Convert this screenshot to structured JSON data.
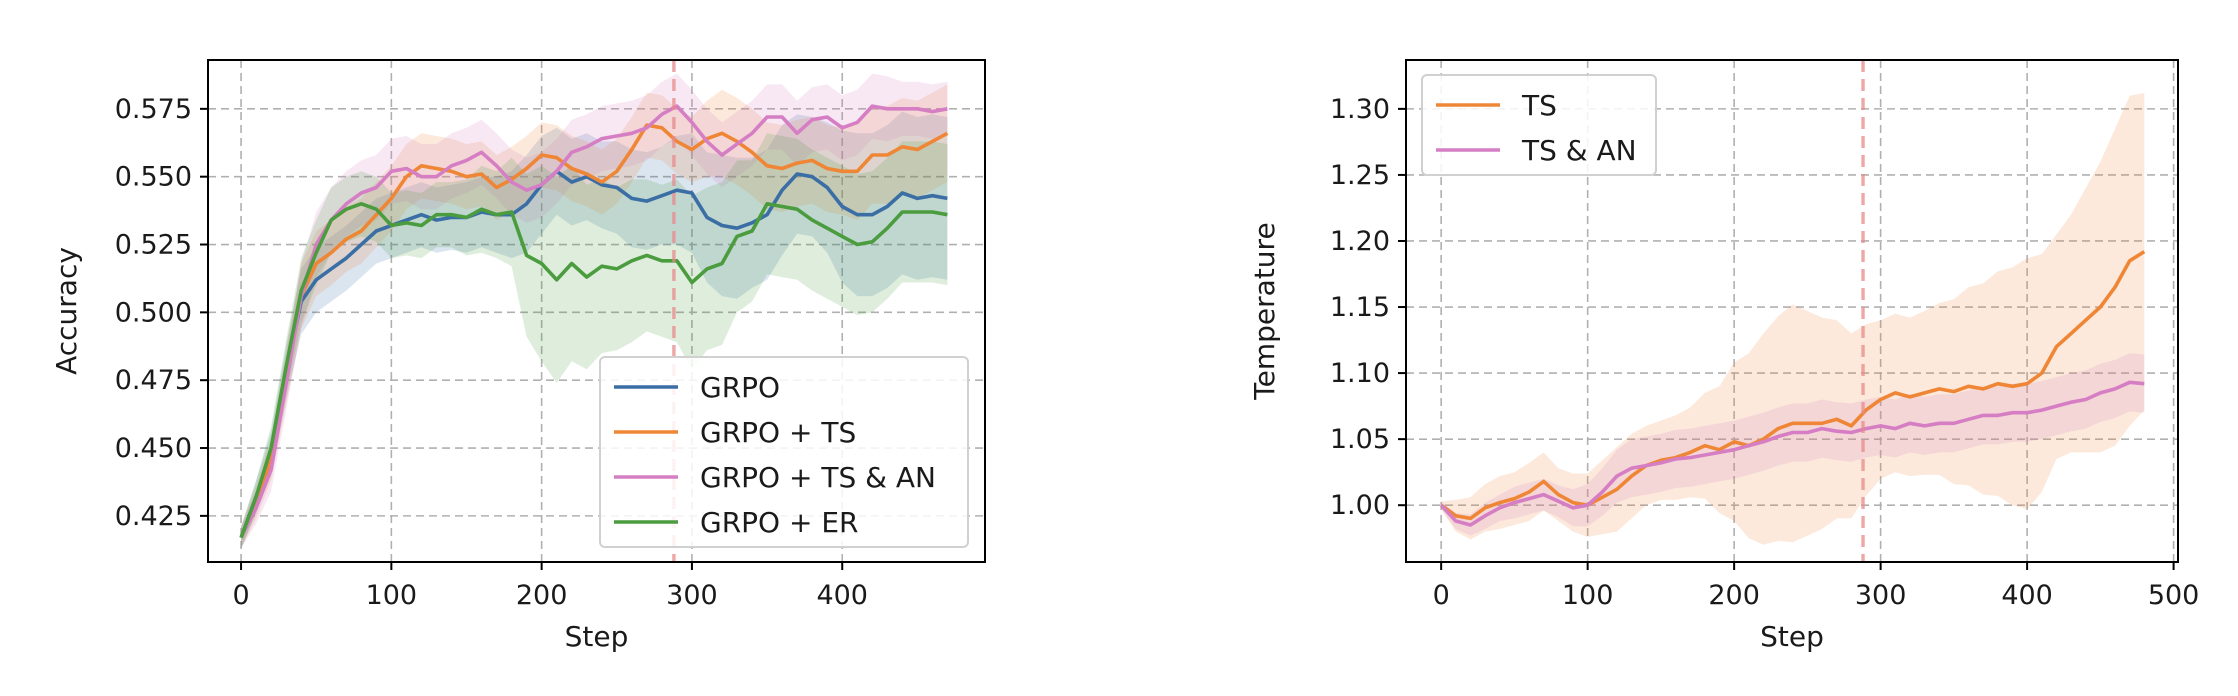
{
  "chart_data": [
    {
      "type": "line",
      "xlabel": "Step",
      "ylabel": "Accuracy",
      "xlim": [
        -22,
        495
      ],
      "ylim": [
        0.408,
        0.593
      ],
      "xticks": [
        0,
        100,
        200,
        300,
        400
      ],
      "yticks": [
        0.425,
        0.45,
        0.475,
        0.5,
        0.525,
        0.55,
        0.575
      ],
      "ytick_labels": [
        "0.425",
        "0.450",
        "0.475",
        "0.500",
        "0.525",
        "0.550",
        "0.575"
      ],
      "grid": true,
      "vline": 288,
      "legend_position": "lower-right",
      "series": [
        {
          "name": "GRPO",
          "color": "#3a6ea5",
          "x": [
            0,
            10,
            20,
            30,
            40,
            50,
            60,
            70,
            80,
            90,
            100,
            110,
            120,
            130,
            140,
            150,
            160,
            170,
            180,
            190,
            200,
            210,
            220,
            230,
            240,
            250,
            260,
            270,
            280,
            290,
            300,
            310,
            320,
            330,
            340,
            350,
            360,
            370,
            380,
            390,
            400,
            410,
            420,
            430,
            440,
            450,
            460,
            470
          ],
          "y": [
            0.417,
            0.432,
            0.448,
            0.478,
            0.504,
            0.512,
            0.516,
            0.52,
            0.525,
            0.53,
            0.532,
            0.534,
            0.536,
            0.534,
            0.535,
            0.535,
            0.537,
            0.536,
            0.536,
            0.54,
            0.547,
            0.552,
            0.548,
            0.55,
            0.547,
            0.546,
            0.542,
            0.541,
            0.543,
            0.545,
            0.544,
            0.535,
            0.532,
            0.531,
            0.533,
            0.536,
            0.545,
            0.551,
            0.55,
            0.546,
            0.539,
            0.536,
            0.536,
            0.539,
            0.544,
            0.542,
            0.543,
            0.542
          ],
          "band": [
            0.004,
            0.006,
            0.008,
            0.01,
            0.012,
            0.012,
            0.012,
            0.012,
            0.012,
            0.012,
            0.012,
            0.012,
            0.012,
            0.012,
            0.012,
            0.013,
            0.013,
            0.014,
            0.016,
            0.018,
            0.018,
            0.016,
            0.016,
            0.016,
            0.016,
            0.017,
            0.018,
            0.018,
            0.018,
            0.02,
            0.022,
            0.024,
            0.026,
            0.026,
            0.024,
            0.024,
            0.024,
            0.022,
            0.022,
            0.024,
            0.028,
            0.03,
            0.03,
            0.03,
            0.03,
            0.03,
            0.03,
            0.03
          ]
        },
        {
          "name": "GRPO + TS",
          "color": "#ef8636",
          "x": [
            0,
            10,
            20,
            30,
            40,
            50,
            60,
            70,
            80,
            90,
            100,
            110,
            120,
            130,
            140,
            150,
            160,
            170,
            180,
            190,
            200,
            210,
            220,
            230,
            240,
            250,
            260,
            270,
            280,
            290,
            300,
            310,
            320,
            330,
            340,
            350,
            360,
            370,
            380,
            390,
            400,
            410,
            420,
            430,
            440,
            450,
            460,
            470
          ],
          "y": [
            0.417,
            0.43,
            0.446,
            0.476,
            0.506,
            0.518,
            0.522,
            0.527,
            0.53,
            0.536,
            0.542,
            0.55,
            0.554,
            0.553,
            0.552,
            0.55,
            0.551,
            0.546,
            0.549,
            0.553,
            0.558,
            0.557,
            0.553,
            0.551,
            0.548,
            0.552,
            0.56,
            0.569,
            0.568,
            0.563,
            0.56,
            0.564,
            0.566,
            0.563,
            0.559,
            0.554,
            0.553,
            0.555,
            0.556,
            0.553,
            0.552,
            0.552,
            0.558,
            0.558,
            0.561,
            0.56,
            0.563,
            0.566
          ],
          "band": [
            0.004,
            0.006,
            0.008,
            0.01,
            0.012,
            0.012,
            0.012,
            0.012,
            0.012,
            0.012,
            0.012,
            0.012,
            0.012,
            0.012,
            0.012,
            0.012,
            0.012,
            0.012,
            0.012,
            0.012,
            0.012,
            0.012,
            0.012,
            0.012,
            0.012,
            0.012,
            0.012,
            0.012,
            0.012,
            0.012,
            0.012,
            0.014,
            0.016,
            0.016,
            0.016,
            0.016,
            0.016,
            0.016,
            0.016,
            0.016,
            0.016,
            0.018,
            0.018,
            0.018,
            0.018,
            0.018,
            0.018,
            0.018
          ]
        },
        {
          "name": "GRPO + TS & AN",
          "color": "#d57ec4",
          "x": [
            0,
            10,
            20,
            30,
            40,
            50,
            60,
            70,
            80,
            90,
            100,
            110,
            120,
            130,
            140,
            150,
            160,
            170,
            180,
            190,
            200,
            210,
            220,
            230,
            240,
            250,
            260,
            270,
            280,
            290,
            300,
            310,
            320,
            330,
            340,
            350,
            360,
            370,
            380,
            390,
            400,
            410,
            420,
            430,
            440,
            450,
            460,
            470
          ],
          "y": [
            0.417,
            0.428,
            0.442,
            0.474,
            0.506,
            0.525,
            0.534,
            0.54,
            0.544,
            0.546,
            0.552,
            0.553,
            0.55,
            0.55,
            0.554,
            0.556,
            0.559,
            0.554,
            0.548,
            0.545,
            0.547,
            0.552,
            0.559,
            0.561,
            0.564,
            0.565,
            0.566,
            0.568,
            0.573,
            0.576,
            0.57,
            0.563,
            0.558,
            0.562,
            0.566,
            0.572,
            0.572,
            0.566,
            0.571,
            0.572,
            0.568,
            0.57,
            0.576,
            0.575,
            0.575,
            0.575,
            0.574,
            0.575
          ],
          "band": [
            0.004,
            0.006,
            0.008,
            0.01,
            0.012,
            0.012,
            0.012,
            0.012,
            0.012,
            0.012,
            0.012,
            0.012,
            0.012,
            0.012,
            0.012,
            0.012,
            0.012,
            0.012,
            0.012,
            0.012,
            0.012,
            0.012,
            0.012,
            0.012,
            0.012,
            0.012,
            0.012,
            0.012,
            0.012,
            0.012,
            0.012,
            0.012,
            0.012,
            0.012,
            0.012,
            0.012,
            0.012,
            0.012,
            0.012,
            0.012,
            0.012,
            0.012,
            0.012,
            0.012,
            0.01,
            0.01,
            0.01,
            0.01
          ]
        },
        {
          "name": "GRPO + ER",
          "color": "#4a9c3e",
          "x": [
            0,
            10,
            20,
            30,
            40,
            50,
            60,
            70,
            80,
            90,
            100,
            110,
            120,
            130,
            140,
            150,
            160,
            170,
            180,
            190,
            200,
            210,
            220,
            230,
            240,
            250,
            260,
            270,
            280,
            290,
            300,
            310,
            320,
            330,
            340,
            350,
            360,
            370,
            380,
            390,
            400,
            410,
            420,
            430,
            440,
            450,
            460,
            470
          ],
          "y": [
            0.417,
            0.432,
            0.45,
            0.48,
            0.508,
            0.522,
            0.534,
            0.538,
            0.54,
            0.538,
            0.532,
            0.533,
            0.532,
            0.536,
            0.536,
            0.535,
            0.538,
            0.536,
            0.537,
            0.521,
            0.518,
            0.512,
            0.518,
            0.513,
            0.517,
            0.516,
            0.519,
            0.521,
            0.519,
            0.519,
            0.511,
            0.516,
            0.518,
            0.528,
            0.53,
            0.54,
            0.539,
            0.538,
            0.534,
            0.531,
            0.528,
            0.525,
            0.526,
            0.531,
            0.537,
            0.537,
            0.537,
            0.536
          ],
          "band": [
            0.004,
            0.006,
            0.008,
            0.01,
            0.012,
            0.012,
            0.012,
            0.012,
            0.012,
            0.012,
            0.012,
            0.012,
            0.012,
            0.012,
            0.012,
            0.014,
            0.016,
            0.016,
            0.02,
            0.03,
            0.036,
            0.038,
            0.036,
            0.034,
            0.032,
            0.03,
            0.03,
            0.028,
            0.028,
            0.03,
            0.032,
            0.03,
            0.03,
            0.028,
            0.026,
            0.026,
            0.026,
            0.026,
            0.026,
            0.026,
            0.026,
            0.026,
            0.026,
            0.026,
            0.026,
            0.026,
            0.026,
            0.026
          ]
        }
      ]
    },
    {
      "type": "line",
      "xlabel": "Step",
      "ylabel": "Temperature",
      "xlim": [
        -24,
        503
      ],
      "ylim": [
        0.957,
        1.337
      ],
      "xticks": [
        0,
        100,
        200,
        300,
        400,
        500
      ],
      "yticks": [
        1.0,
        1.05,
        1.1,
        1.15,
        1.2,
        1.25,
        1.3
      ],
      "ytick_labels": [
        "1.00",
        "1.05",
        "1.10",
        "1.15",
        "1.20",
        "1.25",
        "1.30"
      ],
      "grid": true,
      "vline": 288,
      "legend_position": "top-left",
      "series": [
        {
          "name": "TS",
          "color": "#ef8636",
          "x": [
            0,
            10,
            20,
            30,
            40,
            50,
            60,
            70,
            80,
            90,
            100,
            110,
            120,
            130,
            140,
            150,
            160,
            170,
            180,
            190,
            200,
            210,
            220,
            230,
            240,
            250,
            260,
            270,
            280,
            290,
            300,
            310,
            320,
            330,
            340,
            350,
            360,
            370,
            380,
            390,
            400,
            410,
            420,
            430,
            440,
            450,
            460,
            470,
            480
          ],
          "y": [
            1.0,
            0.992,
            0.99,
            0.998,
            1.002,
            1.005,
            1.01,
            1.018,
            1.008,
            1.002,
            1.0,
            1.006,
            1.012,
            1.022,
            1.03,
            1.034,
            1.036,
            1.04,
            1.045,
            1.042,
            1.048,
            1.045,
            1.05,
            1.058,
            1.062,
            1.062,
            1.062,
            1.065,
            1.06,
            1.072,
            1.08,
            1.085,
            1.082,
            1.085,
            1.088,
            1.086,
            1.09,
            1.088,
            1.092,
            1.09,
            1.092,
            1.1,
            1.12,
            1.13,
            1.14,
            1.15,
            1.165,
            1.185,
            1.192
          ],
          "band": [
            0.003,
            0.012,
            0.016,
            0.018,
            0.02,
            0.02,
            0.022,
            0.022,
            0.02,
            0.022,
            0.024,
            0.028,
            0.032,
            0.032,
            0.03,
            0.03,
            0.032,
            0.034,
            0.04,
            0.048,
            0.06,
            0.07,
            0.08,
            0.085,
            0.09,
            0.085,
            0.08,
            0.075,
            0.07,
            0.065,
            0.06,
            0.06,
            0.06,
            0.062,
            0.065,
            0.07,
            0.075,
            0.08,
            0.085,
            0.09,
            0.095,
            0.09,
            0.085,
            0.09,
            0.1,
            0.11,
            0.12,
            0.125,
            0.12
          ]
        },
        {
          "name": "TS & AN",
          "color": "#d57ec4",
          "x": [
            0,
            10,
            20,
            30,
            40,
            50,
            60,
            70,
            80,
            90,
            100,
            110,
            120,
            130,
            140,
            150,
            160,
            170,
            180,
            190,
            200,
            210,
            220,
            230,
            240,
            250,
            260,
            270,
            280,
            290,
            300,
            310,
            320,
            330,
            340,
            350,
            360,
            370,
            380,
            390,
            400,
            410,
            420,
            430,
            440,
            450,
            460,
            470,
            480
          ],
          "y": [
            1.0,
            0.988,
            0.985,
            0.992,
            0.998,
            1.002,
            1.005,
            1.008,
            1.003,
            0.998,
            1.0,
            1.01,
            1.022,
            1.028,
            1.03,
            1.032,
            1.035,
            1.036,
            1.038,
            1.04,
            1.042,
            1.045,
            1.048,
            1.052,
            1.055,
            1.055,
            1.058,
            1.056,
            1.055,
            1.058,
            1.06,
            1.058,
            1.062,
            1.06,
            1.062,
            1.062,
            1.065,
            1.068,
            1.068,
            1.07,
            1.07,
            1.072,
            1.075,
            1.078,
            1.08,
            1.085,
            1.088,
            1.093,
            1.092
          ],
          "band": [
            0.003,
            0.006,
            0.008,
            0.01,
            0.01,
            0.012,
            0.012,
            0.012,
            0.012,
            0.014,
            0.016,
            0.018,
            0.02,
            0.022,
            0.022,
            0.022,
            0.022,
            0.022,
            0.022,
            0.022,
            0.022,
            0.022,
            0.022,
            0.022,
            0.022,
            0.022,
            0.022,
            0.022,
            0.022,
            0.022,
            0.022,
            0.022,
            0.022,
            0.022,
            0.022,
            0.022,
            0.022,
            0.022,
            0.022,
            0.022,
            0.022,
            0.022,
            0.022,
            0.022,
            0.022,
            0.022,
            0.022,
            0.022,
            0.022
          ]
        }
      ]
    }
  ]
}
